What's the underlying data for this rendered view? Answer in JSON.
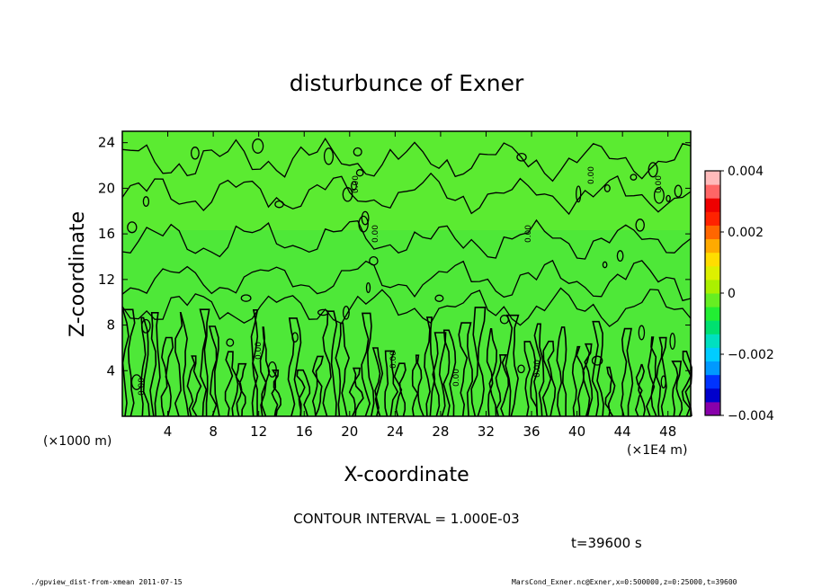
{
  "chart_data": {
    "type": "heatmap",
    "title": "disturbunce of Exner",
    "xlabel": "X-coordinate",
    "ylabel": "Z-coordinate",
    "x_ticks": [
      4,
      8,
      12,
      16,
      20,
      24,
      28,
      32,
      36,
      40,
      44,
      48
    ],
    "y_ticks": [
      4,
      8,
      12,
      16,
      20,
      24
    ],
    "xlim": [
      0,
      50
    ],
    "ylim": [
      0,
      25
    ],
    "x_unit_left": "(×1000 m)",
    "x_unit_right": "(×1E4 m)",
    "contour_interval_text": "CONTOUR INTERVAL = 1.000E-03",
    "contour_label": "0.00",
    "colorbar": {
      "min": -0.004,
      "max": 0.004,
      "tick_values": [
        0.004,
        0.002,
        0,
        -0.002,
        -0.004
      ],
      "tick_labels": [
        "0.004",
        "0.002",
        "0",
        "−0.002",
        "−0.004"
      ],
      "colors": [
        "#8800aa",
        "#0000cc",
        "#0033ff",
        "#0099ff",
        "#00ccff",
        "#00e0c0",
        "#00e070",
        "#22ee33",
        "#66ee22",
        "#aaf000",
        "#ddf000",
        "#ffdd00",
        "#ffaa00",
        "#ff6600",
        "#ff2200",
        "#ee0000",
        "#ff6666",
        "#ffbbbb"
      ]
    },
    "field_color": "#4ee838",
    "field_color_upper": "#66ec2c"
  },
  "time_text": "t=39600 s",
  "footer_left": "./gpview_dist-from-xmean   2011-07-15",
  "footer_right": "MarsCond_Exner.nc@Exner,x=0:500000,z=0:25000,t=39600"
}
